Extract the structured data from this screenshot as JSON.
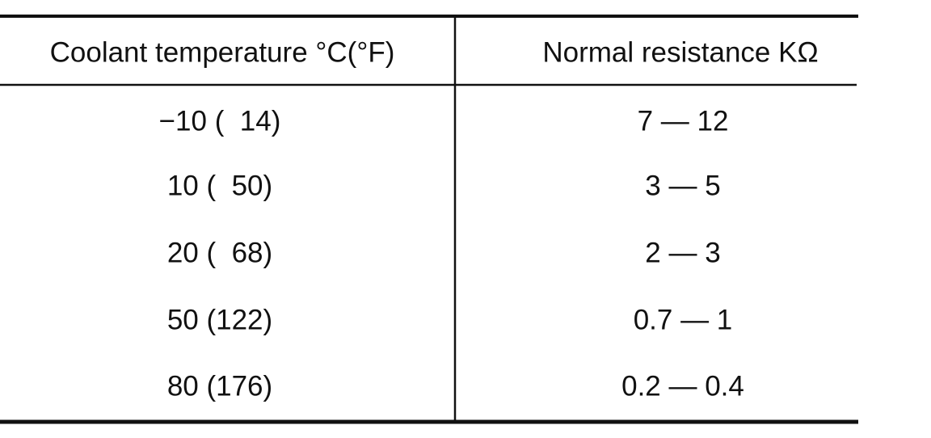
{
  "table": {
    "headers": [
      "Coolant temperature °C(°F)",
      "Normal resistance KΩ"
    ],
    "rows": [
      [
        "−10 (  14)",
        "7 — 12"
      ],
      [
        "10 (  50)",
        "3 — 5"
      ],
      [
        "20 (  68)",
        "2 — 3"
      ],
      [
        "50 (122)",
        "0.7 — 1"
      ],
      [
        "80 (176)",
        "0.2 — 0.4"
      ]
    ]
  }
}
